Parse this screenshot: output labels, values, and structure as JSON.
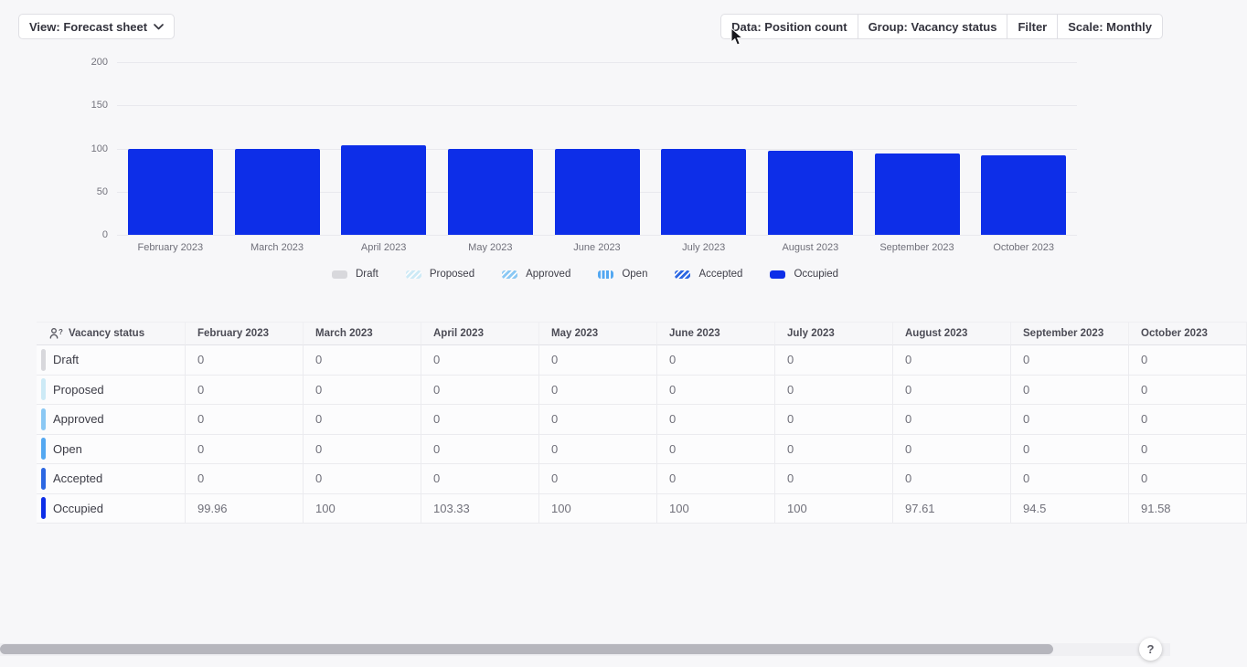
{
  "toolbar": {
    "view_label": "View: Forecast sheet",
    "data_label": "Data: Position count",
    "group_label": "Group: Vacancy status",
    "filter_label": "Filter",
    "scale_label": "Scale: Monthly"
  },
  "chart_data": {
    "type": "bar",
    "title": "",
    "xlabel": "",
    "ylabel": "",
    "categories": [
      "February 2023",
      "March 2023",
      "April 2023",
      "May 2023",
      "June 2023",
      "July 2023",
      "August 2023",
      "September 2023",
      "October 2023"
    ],
    "series": [
      {
        "name": "Draft",
        "color": "#d8d8dc",
        "pattern": "solid",
        "values": [
          0,
          0,
          0,
          0,
          0,
          0,
          0,
          0,
          0
        ]
      },
      {
        "name": "Proposed",
        "color": "#cdeaf6",
        "pattern": "diag",
        "values": [
          0,
          0,
          0,
          0,
          0,
          0,
          0,
          0,
          0
        ]
      },
      {
        "name": "Approved",
        "color": "#8ac8f4",
        "pattern": "diag",
        "values": [
          0,
          0,
          0,
          0,
          0,
          0,
          0,
          0,
          0
        ]
      },
      {
        "name": "Open",
        "color": "#54a8f1",
        "pattern": "vert",
        "values": [
          0,
          0,
          0,
          0,
          0,
          0,
          0,
          0,
          0
        ]
      },
      {
        "name": "Accepted",
        "color": "#2c67e2",
        "pattern": "diag",
        "values": [
          0,
          0,
          0,
          0,
          0,
          0,
          0,
          0,
          0
        ]
      },
      {
        "name": "Occupied",
        "color": "#0d2ee8",
        "pattern": "solid",
        "values": [
          99.96,
          100,
          103.33,
          100,
          100,
          100,
          97.61,
          94.5,
          91.58
        ]
      }
    ],
    "ylim": [
      0,
      200
    ],
    "yticks": [
      0,
      50,
      100,
      150,
      200
    ],
    "grid": true,
    "legend_position": "bottom"
  },
  "table": {
    "group_header": "Vacancy status",
    "columns": [
      "February 2023",
      "March 2023",
      "April 2023",
      "May 2023",
      "June 2023",
      "July 2023",
      "August 2023",
      "September 2023",
      "October 2023"
    ],
    "rows": [
      {
        "label": "Draft",
        "values": [
          "0",
          "0",
          "0",
          "0",
          "0",
          "0",
          "0",
          "0",
          "0"
        ]
      },
      {
        "label": "Proposed",
        "values": [
          "0",
          "0",
          "0",
          "0",
          "0",
          "0",
          "0",
          "0",
          "0"
        ]
      },
      {
        "label": "Approved",
        "values": [
          "0",
          "0",
          "0",
          "0",
          "0",
          "0",
          "0",
          "0",
          "0"
        ]
      },
      {
        "label": "Open",
        "values": [
          "0",
          "0",
          "0",
          "0",
          "0",
          "0",
          "0",
          "0",
          "0"
        ]
      },
      {
        "label": "Accepted",
        "values": [
          "0",
          "0",
          "0",
          "0",
          "0",
          "0",
          "0",
          "0",
          "0"
        ]
      },
      {
        "label": "Occupied",
        "values": [
          "99.96",
          "100",
          "103.33",
          "100",
          "100",
          "100",
          "97.61",
          "94.5",
          "91.58"
        ]
      }
    ]
  },
  "help_label": "?"
}
